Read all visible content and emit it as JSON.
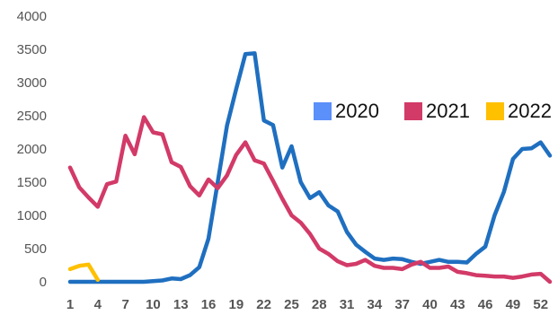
{
  "chart_data": {
    "type": "line",
    "title": "",
    "xlabel": "",
    "ylabel": "",
    "ylim": [
      0,
      4000
    ],
    "yticks": [
      0,
      500,
      1000,
      1500,
      2000,
      2500,
      3000,
      3500,
      4000
    ],
    "xlim": [
      1,
      53
    ],
    "xticks": [
      1,
      4,
      7,
      10,
      13,
      16,
      19,
      22,
      25,
      28,
      31,
      34,
      37,
      40,
      43,
      46,
      49,
      52
    ],
    "grid": false,
    "legend_position": "top-right",
    "series": [
      {
        "name": "2020",
        "color": "#1f6fc0",
        "legend_color": "#5b8ff9",
        "x": [
          1,
          2,
          3,
          4,
          5,
          6,
          7,
          8,
          9,
          10,
          11,
          12,
          13,
          14,
          15,
          16,
          17,
          18,
          19,
          20,
          21,
          22,
          23,
          24,
          25,
          26,
          27,
          28,
          29,
          30,
          31,
          32,
          33,
          34,
          35,
          36,
          37,
          38,
          39,
          40,
          41,
          42,
          43,
          44,
          45,
          46,
          47,
          48,
          49,
          50,
          51,
          52,
          53
        ],
        "values": [
          0,
          0,
          0,
          0,
          0,
          0,
          0,
          0,
          0,
          10,
          20,
          50,
          40,
          100,
          220,
          650,
          1500,
          2350,
          2900,
          3430,
          3440,
          2430,
          2360,
          1720,
          2040,
          1500,
          1260,
          1350,
          1150,
          1060,
          750,
          560,
          450,
          350,
          330,
          350,
          340,
          300,
          270,
          300,
          330,
          300,
          300,
          290,
          420,
          530,
          1000,
          1350,
          1850,
          2000,
          2010,
          2100,
          1900
        ]
      },
      {
        "name": "2021",
        "color": "#d23a68",
        "legend_color": "#d23a68",
        "x": [
          1,
          2,
          3,
          4,
          5,
          6,
          7,
          8,
          9,
          10,
          11,
          12,
          13,
          14,
          15,
          16,
          17,
          18,
          19,
          20,
          21,
          22,
          23,
          24,
          25,
          26,
          27,
          28,
          29,
          30,
          31,
          32,
          33,
          34,
          35,
          36,
          37,
          38,
          39,
          40,
          41,
          42,
          43,
          44,
          45,
          46,
          47,
          48,
          49,
          50,
          51,
          52,
          53
        ],
        "values": [
          1720,
          1420,
          1270,
          1130,
          1470,
          1510,
          2200,
          1920,
          2480,
          2250,
          2220,
          1800,
          1730,
          1440,
          1300,
          1540,
          1410,
          1600,
          1910,
          2100,
          1830,
          1780,
          1520,
          1250,
          1000,
          890,
          720,
          500,
          420,
          310,
          250,
          270,
          330,
          240,
          210,
          210,
          190,
          260,
          300,
          210,
          210,
          230,
          150,
          130,
          100,
          90,
          80,
          80,
          60,
          80,
          110,
          120,
          0
        ]
      },
      {
        "name": "2022",
        "color": "#ffc000",
        "legend_color": "#ffc000",
        "x": [
          1,
          2,
          3,
          4
        ],
        "values": [
          190,
          240,
          260,
          30
        ]
      }
    ]
  }
}
